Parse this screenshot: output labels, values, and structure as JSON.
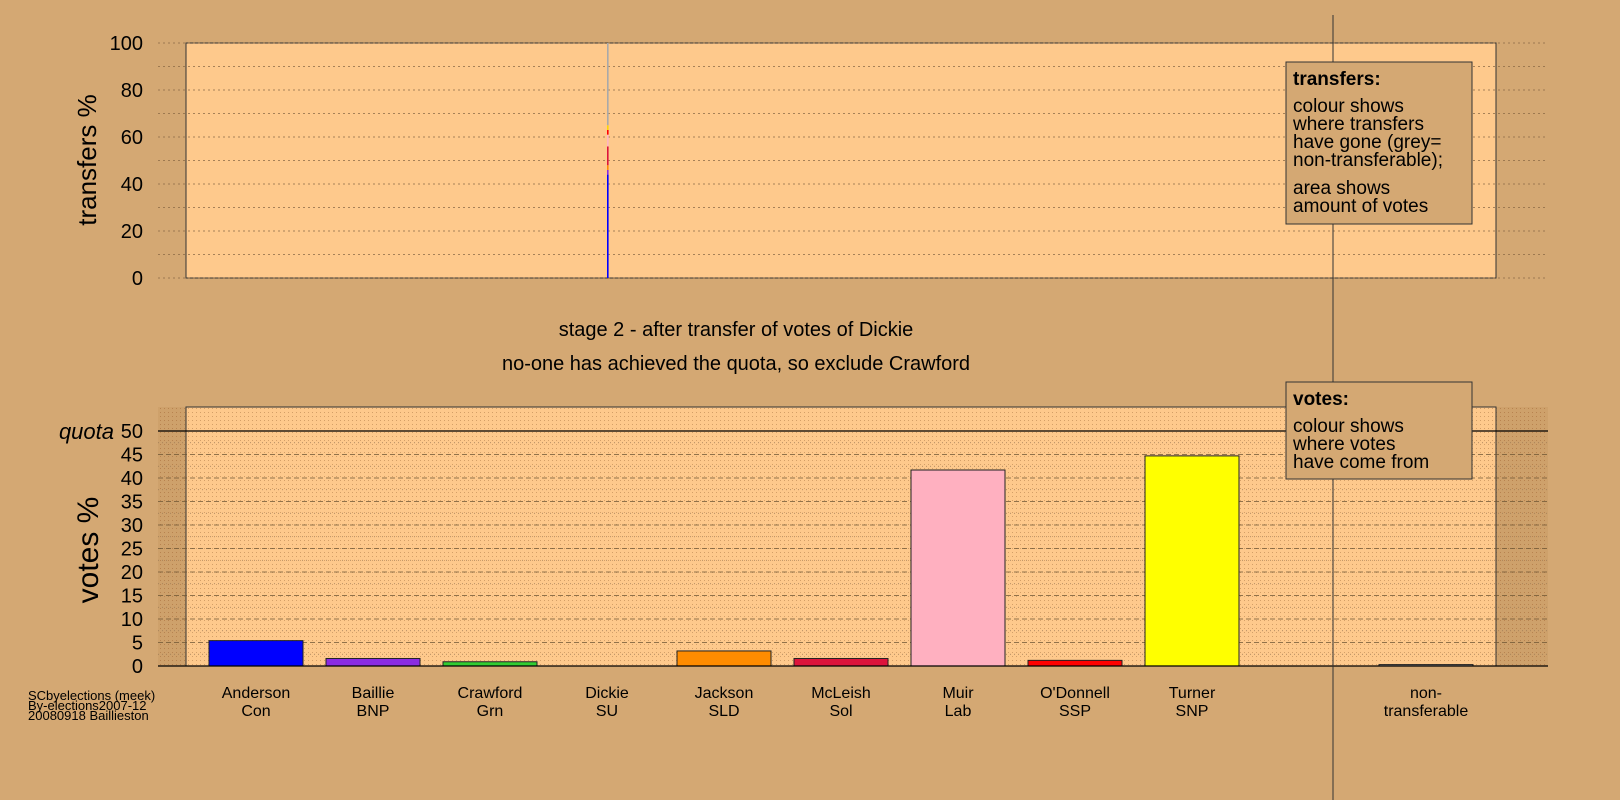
{
  "footer": {
    "lines": [
      "SCbyelections (meek)",
      "By-elections2007-12",
      "20080918 Baillieston"
    ]
  },
  "colors": {
    "background": "#d4a873",
    "plot_area": "#fec98c",
    "non_transferable": "#a9a9a9"
  },
  "chart_data": [
    {
      "type": "bar",
      "ylabel": "transfers %",
      "ylim": [
        0,
        100
      ],
      "yticks": [
        0,
        20,
        40,
        60,
        80,
        100
      ],
      "grid": true,
      "transfer_from": "Dickie",
      "segments": [
        {
          "value": 44,
          "color": "#0000ff"
        },
        {
          "value": 2,
          "color": "#8a2be2"
        },
        {
          "value": 2,
          "color": "#ff8c00"
        },
        {
          "value": 8,
          "color": "#dc143c"
        },
        {
          "value": 5,
          "color": "#ffb6c1"
        },
        {
          "value": 2,
          "color": "#ff0000"
        },
        {
          "value": 2,
          "color": "#ffd700"
        },
        {
          "value": 35,
          "color": "#a9a9a9"
        }
      ],
      "legend": {
        "title": "transfers:",
        "lines": [
          "colour shows",
          "where transfers",
          "have gone (grey=",
          "non-transferable);",
          "area shows",
          "amount of votes"
        ],
        "placement": "top-right"
      }
    },
    {
      "type": "bar",
      "stage_line1": "stage 2 - after transfer of votes of Dickie",
      "stage_line2": "no-one has achieved the quota, so exclude Crawford",
      "ylabel": "votes %",
      "ylim": [
        0,
        50
      ],
      "yticks": [
        0,
        5,
        10,
        15,
        20,
        25,
        30,
        35,
        40,
        45,
        50
      ],
      "quota_label": "quota",
      "quota": 50,
      "grid": true,
      "categories": [
        {
          "name": "Anderson",
          "party": "Con",
          "value": 5.4,
          "color": "#0000ff"
        },
        {
          "name": "Baillie",
          "party": "BNP",
          "value": 1.6,
          "color": "#8a2be2"
        },
        {
          "name": "Crawford",
          "party": "Grn",
          "value": 0.9,
          "color": "#32cd32"
        },
        {
          "name": "Dickie",
          "party": "SU",
          "value": 0,
          "color": "#ffffff"
        },
        {
          "name": "Jackson",
          "party": "SLD",
          "value": 3.2,
          "color": "#ff8c00"
        },
        {
          "name": "McLeish",
          "party": "Sol",
          "value": 1.6,
          "color": "#dc143c"
        },
        {
          "name": "Muir",
          "party": "Lab",
          "value": 41.7,
          "color": "#ffb0c0"
        },
        {
          "name": "O'Donnell",
          "party": "SSP",
          "value": 1.2,
          "color": "#ff0000"
        },
        {
          "name": "Turner",
          "party": "SNP",
          "value": 44.7,
          "color": "#ffff00"
        },
        {
          "name": "non-",
          "party": "transferable",
          "value": 0.3,
          "color": "#a9a9a9"
        }
      ],
      "legend": {
        "title": "votes:",
        "lines": [
          "colour shows",
          "where votes",
          "have come from"
        ],
        "placement": "top-right"
      }
    }
  ]
}
